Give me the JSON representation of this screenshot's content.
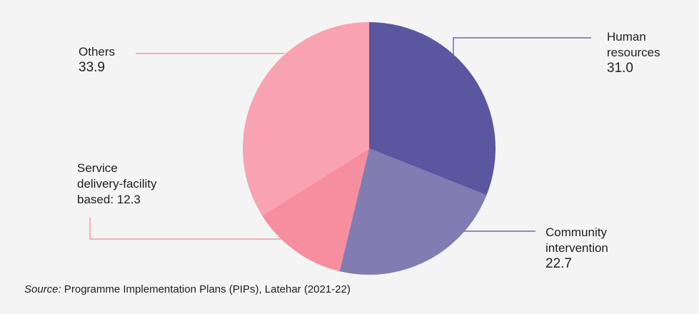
{
  "chart_data": {
    "type": "pie",
    "start": "12 o'clock",
    "direction": "clockwise",
    "slices": [
      {
        "label_lines": [
          "Human",
          "resources"
        ],
        "value": 31.0,
        "value_text": "31.0",
        "color": "#5b56a0"
      },
      {
        "label_lines": [
          "Community",
          "intervention"
        ],
        "value": 22.7,
        "value_text": "22.7",
        "color": "#817db3"
      },
      {
        "label_lines": [
          "Service",
          "delivery-facility",
          "based: 12.3"
        ],
        "value": 12.3,
        "value_text": "",
        "color": "#f78ea0"
      },
      {
        "label_lines": [
          "Others"
        ],
        "value": 33.9,
        "value_text": "33.9",
        "color": "#f9a3b2"
      }
    ],
    "leader_colors": {
      "purple": "#6e6aa8",
      "pink": "#f595a7"
    },
    "source_prefix": "Source:",
    "source_text": " Programme Implementation Plans (PIPs), Latehar (2021-22)"
  }
}
